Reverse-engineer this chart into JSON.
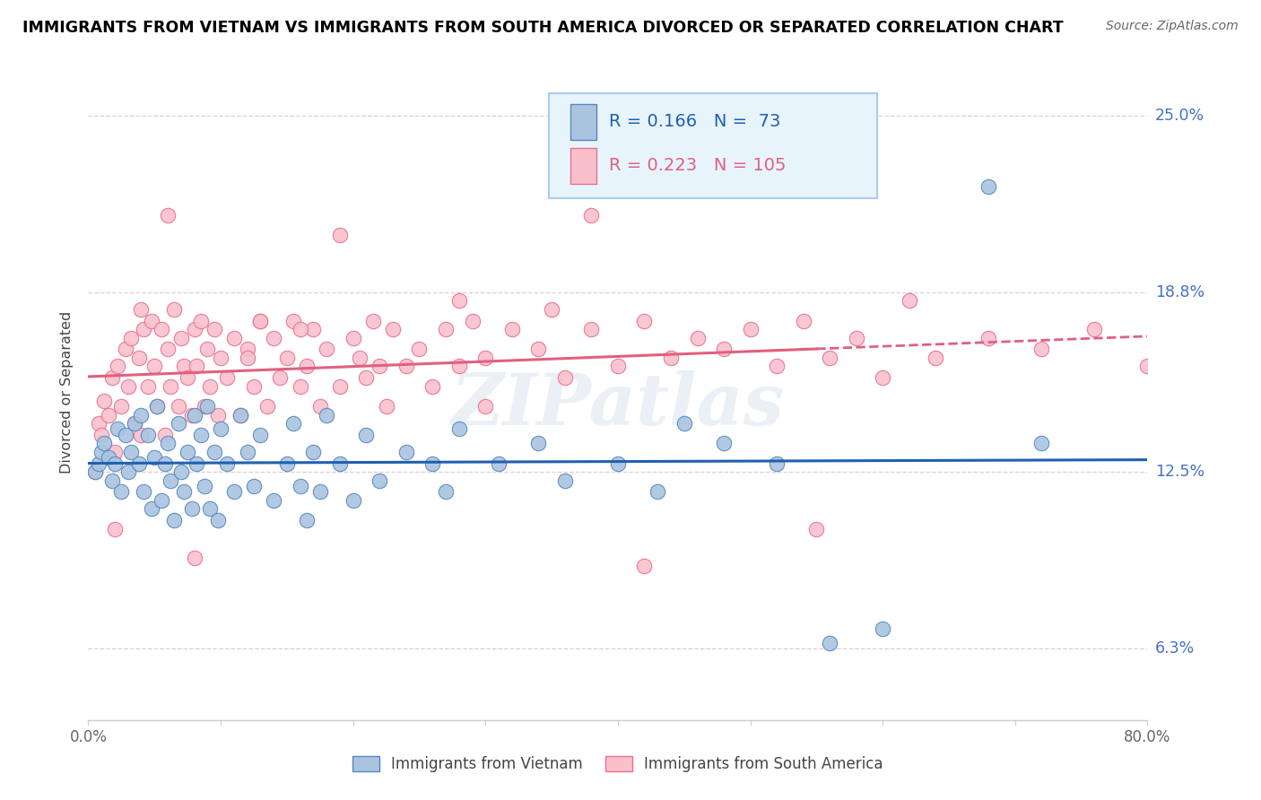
{
  "title": "IMMIGRANTS FROM VIETNAM VS IMMIGRANTS FROM SOUTH AMERICA DIVORCED OR SEPARATED CORRELATION CHART",
  "source": "Source: ZipAtlas.com",
  "ylabel": "Divorced or Separated",
  "xlim": [
    0,
    0.8
  ],
  "ylim": [
    0.038,
    0.268
  ],
  "ytick_vals": [
    0.063,
    0.125,
    0.188,
    0.25
  ],
  "ytick_labels": [
    "6.3%",
    "12.5%",
    "18.8%",
    "25.0%"
  ],
  "xtick_vals": [
    0.0,
    0.1,
    0.2,
    0.3,
    0.4,
    0.5,
    0.6,
    0.7,
    0.8
  ],
  "xtick_labels": [
    "0.0%",
    "",
    "",
    "",
    "",
    "",
    "",
    "",
    "80.0%"
  ],
  "r_vietnam": 0.166,
  "n_vietnam": 73,
  "r_south_america": 0.223,
  "n_south_america": 105,
  "color_vietnam": "#aac4e0",
  "color_south_america": "#f9c0cc",
  "edge_vietnam": "#5588bb",
  "edge_south_america": "#e87090",
  "trend_blue": "#2060b0",
  "trend_pink": "#e06080",
  "watermark": "ZIPatlas",
  "legend_facecolor": "#e8f4fc",
  "legend_edgecolor": "#aaccee",
  "grid_color": "#d8c0d0",
  "viet_x": [
    0.005,
    0.008,
    0.01,
    0.012,
    0.015,
    0.018,
    0.02,
    0.022,
    0.025,
    0.028,
    0.03,
    0.032,
    0.035,
    0.038,
    0.04,
    0.042,
    0.045,
    0.048,
    0.05,
    0.052,
    0.055,
    0.058,
    0.06,
    0.062,
    0.065,
    0.068,
    0.07,
    0.072,
    0.075,
    0.078,
    0.08,
    0.082,
    0.085,
    0.088,
    0.09,
    0.092,
    0.095,
    0.098,
    0.1,
    0.105,
    0.11,
    0.115,
    0.12,
    0.125,
    0.13,
    0.14,
    0.15,
    0.155,
    0.16,
    0.165,
    0.17,
    0.175,
    0.18,
    0.19,
    0.2,
    0.21,
    0.22,
    0.24,
    0.26,
    0.27,
    0.28,
    0.31,
    0.34,
    0.36,
    0.4,
    0.43,
    0.45,
    0.48,
    0.52,
    0.56,
    0.6,
    0.68,
    0.72
  ],
  "viet_y": [
    0.125,
    0.128,
    0.132,
    0.135,
    0.13,
    0.122,
    0.128,
    0.14,
    0.118,
    0.138,
    0.125,
    0.132,
    0.142,
    0.128,
    0.145,
    0.118,
    0.138,
    0.112,
    0.13,
    0.148,
    0.115,
    0.128,
    0.135,
    0.122,
    0.108,
    0.142,
    0.125,
    0.118,
    0.132,
    0.112,
    0.145,
    0.128,
    0.138,
    0.12,
    0.148,
    0.112,
    0.132,
    0.108,
    0.14,
    0.128,
    0.118,
    0.145,
    0.132,
    0.12,
    0.138,
    0.115,
    0.128,
    0.142,
    0.12,
    0.108,
    0.132,
    0.118,
    0.145,
    0.128,
    0.115,
    0.138,
    0.122,
    0.132,
    0.128,
    0.118,
    0.14,
    0.128,
    0.135,
    0.122,
    0.128,
    0.118,
    0.142,
    0.135,
    0.128,
    0.065,
    0.07,
    0.225,
    0.135
  ],
  "sa_x": [
    0.005,
    0.008,
    0.01,
    0.012,
    0.015,
    0.018,
    0.02,
    0.022,
    0.025,
    0.028,
    0.03,
    0.032,
    0.035,
    0.038,
    0.04,
    0.042,
    0.045,
    0.048,
    0.05,
    0.052,
    0.055,
    0.058,
    0.06,
    0.062,
    0.065,
    0.068,
    0.07,
    0.072,
    0.075,
    0.078,
    0.08,
    0.082,
    0.085,
    0.088,
    0.09,
    0.092,
    0.095,
    0.098,
    0.1,
    0.105,
    0.11,
    0.115,
    0.12,
    0.125,
    0.13,
    0.135,
    0.14,
    0.145,
    0.15,
    0.155,
    0.16,
    0.165,
    0.17,
    0.175,
    0.18,
    0.19,
    0.2,
    0.205,
    0.21,
    0.215,
    0.22,
    0.225,
    0.23,
    0.24,
    0.25,
    0.26,
    0.27,
    0.28,
    0.29,
    0.3,
    0.32,
    0.34,
    0.35,
    0.36,
    0.38,
    0.4,
    0.42,
    0.44,
    0.46,
    0.48,
    0.5,
    0.52,
    0.54,
    0.56,
    0.58,
    0.6,
    0.64,
    0.68,
    0.72,
    0.76,
    0.8,
    0.55,
    0.62,
    0.38,
    0.42,
    0.28,
    0.3,
    0.19,
    0.16,
    0.13,
    0.12,
    0.08,
    0.06,
    0.04,
    0.02
  ],
  "sa_y": [
    0.125,
    0.142,
    0.138,
    0.15,
    0.145,
    0.158,
    0.132,
    0.162,
    0.148,
    0.168,
    0.155,
    0.172,
    0.142,
    0.165,
    0.138,
    0.175,
    0.155,
    0.178,
    0.162,
    0.148,
    0.175,
    0.138,
    0.168,
    0.155,
    0.182,
    0.148,
    0.172,
    0.162,
    0.158,
    0.145,
    0.175,
    0.162,
    0.178,
    0.148,
    0.168,
    0.155,
    0.175,
    0.145,
    0.165,
    0.158,
    0.172,
    0.145,
    0.168,
    0.155,
    0.178,
    0.148,
    0.172,
    0.158,
    0.165,
    0.178,
    0.155,
    0.162,
    0.175,
    0.148,
    0.168,
    0.155,
    0.172,
    0.165,
    0.158,
    0.178,
    0.162,
    0.148,
    0.175,
    0.162,
    0.168,
    0.155,
    0.175,
    0.162,
    0.178,
    0.165,
    0.175,
    0.168,
    0.182,
    0.158,
    0.175,
    0.162,
    0.178,
    0.165,
    0.172,
    0.168,
    0.175,
    0.162,
    0.178,
    0.165,
    0.172,
    0.158,
    0.165,
    0.172,
    0.168,
    0.175,
    0.162,
    0.105,
    0.185,
    0.215,
    0.092,
    0.185,
    0.148,
    0.208,
    0.175,
    0.178,
    0.165,
    0.095,
    0.215,
    0.182,
    0.105
  ]
}
